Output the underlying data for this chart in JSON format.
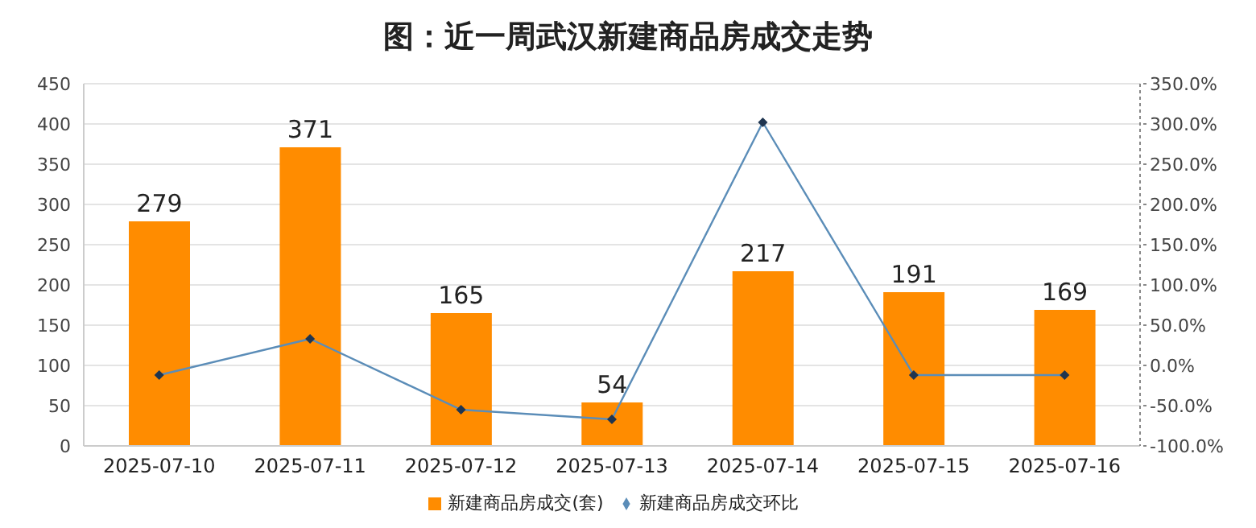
{
  "chart_data": {
    "type": "bar",
    "title": "图：近一周武汉新建商品房成交走势",
    "categories": [
      "2025-07-10",
      "2025-07-11",
      "2025-07-12",
      "2025-07-13",
      "2025-07-14",
      "2025-07-15",
      "2025-07-16"
    ],
    "series": [
      {
        "name": "新建商品房成交(套)",
        "color": "#ff8c00",
        "values": [
          279,
          371,
          165,
          54,
          217,
          191,
          169
        ],
        "value_labels": [
          "279",
          "371",
          "165",
          "54",
          "217",
          "191",
          "169"
        ]
      },
      {
        "name": "新建商品房成交环比",
        "type": "line",
        "axis": "y2",
        "color": "#5b8db8",
        "marker": "diamond",
        "values": [
          -12,
          33,
          -55,
          -67,
          302,
          -12,
          -12
        ]
      }
    ],
    "ylim": [
      0,
      450
    ],
    "yticks": [
      0,
      50,
      100,
      150,
      200,
      250,
      300,
      350,
      400,
      450
    ],
    "y2lim": [
      -100,
      350
    ],
    "y2ticks": [
      {
        "value": -100,
        "label": "-100.0%"
      },
      {
        "value": -50,
        "label": "-50.0%"
      },
      {
        "value": 0,
        "label": "0.0%"
      },
      {
        "value": 50,
        "label": "50.0%"
      },
      {
        "value": 100,
        "label": "100.0%"
      },
      {
        "value": 150,
        "label": "150.0%"
      },
      {
        "value": 200,
        "label": "200.0%"
      },
      {
        "value": 250,
        "label": "250.0%"
      },
      {
        "value": 300,
        "label": "300.0%"
      },
      {
        "value": 350,
        "label": "350.0%"
      }
    ],
    "grid": "y",
    "legend": "bottom"
  }
}
